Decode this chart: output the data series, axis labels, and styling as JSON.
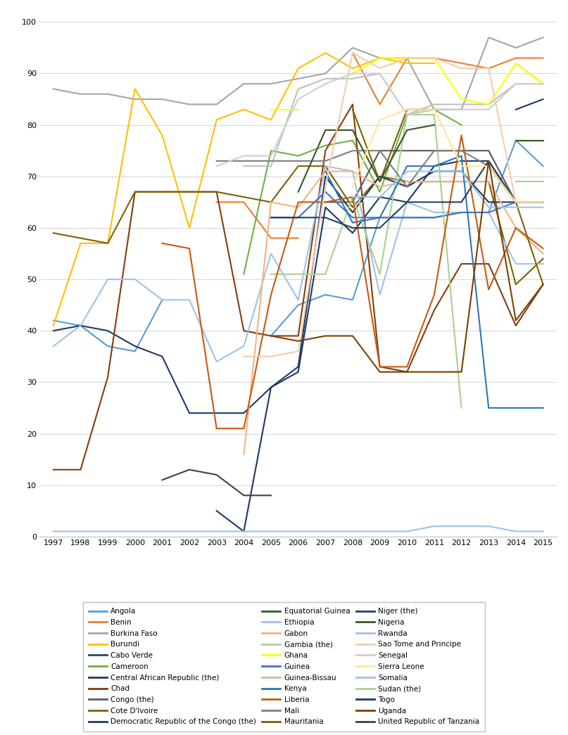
{
  "years": [
    1997,
    1998,
    1999,
    2000,
    2001,
    2002,
    2003,
    2004,
    2005,
    2006,
    2007,
    2008,
    2009,
    2010,
    2011,
    2012,
    2013,
    2014,
    2015
  ],
  "series": [
    {
      "name": "Angola",
      "color": "#5B9BD5",
      "values": [
        42,
        41,
        37,
        36,
        46,
        null,
        null,
        null,
        39,
        45,
        47,
        46,
        62,
        62,
        62,
        63,
        63,
        77,
        72
      ]
    },
    {
      "name": "Benin",
      "color": "#ED7D31",
      "values": [
        null,
        null,
        null,
        null,
        null,
        null,
        65,
        65,
        58,
        58,
        null,
        94,
        84,
        93,
        93,
        92,
        91,
        93,
        93
      ]
    },
    {
      "name": "Burkina Faso",
      "color": "#A5A5A5",
      "values": [
        87,
        86,
        86,
        85,
        85,
        84,
        84,
        88,
        88,
        89,
        90,
        95,
        93,
        93,
        83,
        83,
        97,
        95,
        97
      ]
    },
    {
      "name": "Burundi",
      "color": "#FFC000",
      "values": [
        41,
        57,
        57,
        87,
        78,
        60,
        81,
        83,
        81,
        91,
        94,
        91,
        93,
        92,
        92,
        null,
        null,
        92,
        88
      ]
    },
    {
      "name": "Cabo Verde",
      "color": "#264478",
      "values": [
        null,
        null,
        null,
        null,
        null,
        null,
        null,
        null,
        null,
        null,
        null,
        null,
        null,
        null,
        null,
        null,
        null,
        null,
        null
      ]
    },
    {
      "name": "Cameroon",
      "color": "#70AD47",
      "values": [
        null,
        null,
        null,
        null,
        null,
        null,
        null,
        51,
        75,
        74,
        76,
        77,
        67,
        82,
        83,
        80,
        null,
        77,
        77
      ]
    },
    {
      "name": "Central African Republic (the)",
      "color": "#203864",
      "values": [
        40,
        41,
        40,
        37,
        35,
        24,
        24,
        24,
        29,
        32,
        64,
        59,
        66,
        65,
        72,
        73,
        73,
        65,
        65
      ]
    },
    {
      "name": "Chad",
      "color": "#843C0C",
      "values": [
        13,
        13,
        31,
        67,
        67,
        67,
        67,
        40,
        39,
        39,
        75,
        84,
        33,
        32,
        44,
        53,
        53,
        41,
        49
      ]
    },
    {
      "name": "Congo (the)",
      "color": "#595959",
      "values": [
        null,
        null,
        null,
        null,
        null,
        null,
        null,
        null,
        null,
        null,
        65,
        65,
        75,
        75,
        75,
        75,
        75,
        65,
        65
      ]
    },
    {
      "name": "Cote D'Ivoire",
      "color": "#7F6000",
      "values": [
        59,
        58,
        57,
        67,
        67,
        67,
        67,
        66,
        65,
        72,
        72,
        64,
        70,
        69,
        69,
        69,
        69,
        49,
        54
      ]
    },
    {
      "name": "Democratic Republic of the Congo (the)",
      "color": "#1F3864",
      "values": [
        null,
        null,
        null,
        null,
        null,
        null,
        5,
        1,
        29,
        33,
        70,
        63,
        70,
        68,
        71,
        71,
        65,
        65,
        65
      ]
    },
    {
      "name": "Equatorial Guinea",
      "color": "#375623",
      "values": [
        null,
        null,
        null,
        null,
        null,
        null,
        null,
        null,
        null,
        null,
        null,
        null,
        null,
        null,
        null,
        25,
        null,
        null,
        null
      ]
    },
    {
      "name": "Ethiopia",
      "color": "#9DC3E6",
      "values": [
        37,
        41,
        50,
        50,
        46,
        46,
        34,
        37,
        55,
        46,
        72,
        71,
        47,
        65,
        63,
        63,
        63,
        53,
        53
      ]
    },
    {
      "name": "Gabon",
      "color": "#F4B183",
      "values": [
        null,
        null,
        null,
        null,
        56,
        null,
        null,
        16,
        65,
        64,
        71,
        71,
        68,
        69,
        69,
        69,
        69,
        60,
        55
      ]
    },
    {
      "name": "Gambia (the)",
      "color": "#BFBFBF",
      "values": [
        null,
        null,
        null,
        null,
        null,
        null,
        null,
        72,
        72,
        87,
        89,
        89,
        90,
        82,
        84,
        84,
        84,
        88,
        88
      ]
    },
    {
      "name": "Ghana",
      "color": "#FFFF00",
      "values": [
        null,
        null,
        null,
        null,
        null,
        null,
        null,
        null,
        83,
        83,
        null,
        90,
        93,
        93,
        93,
        85,
        84,
        92,
        88
      ]
    },
    {
      "name": "Guinea",
      "color": "#4472C4",
      "values": [
        null,
        null,
        null,
        null,
        null,
        null,
        null,
        null,
        62,
        62,
        67,
        62,
        62,
        62,
        62,
        63,
        63,
        65,
        65
      ]
    },
    {
      "name": "Guinea-Bissau",
      "color": "#A9D18E",
      "values": [
        null,
        null,
        null,
        null,
        null,
        null,
        null,
        null,
        51,
        51,
        51,
        66,
        51,
        82,
        82,
        25,
        null,
        69,
        69
      ]
    },
    {
      "name": "Kenya",
      "color": "#2E75B6",
      "values": [
        null,
        null,
        null,
        null,
        null,
        null,
        null,
        null,
        null,
        null,
        71,
        61,
        62,
        72,
        72,
        74,
        25,
        25,
        25
      ]
    },
    {
      "name": "Liberia",
      "color": "#C55A11",
      "values": [
        null,
        null,
        null,
        null,
        57,
        56,
        21,
        21,
        47,
        65,
        65,
        66,
        33,
        33,
        47,
        78,
        48,
        60,
        56
      ]
    },
    {
      "name": "Mali",
      "color": "#7F7F7F",
      "values": [
        null,
        null,
        null,
        null,
        null,
        null,
        73,
        73,
        73,
        73,
        73,
        75,
        75,
        68,
        75,
        75,
        72,
        65,
        65
      ]
    },
    {
      "name": "Mauritania",
      "color": "#806000",
      "values": [
        null,
        null,
        null,
        null,
        null,
        null,
        null,
        null,
        null,
        null,
        null,
        83,
        69,
        83,
        83,
        null,
        72,
        65,
        49
      ]
    },
    {
      "name": "Niger (the)",
      "color": "#243F60",
      "values": [
        null,
        null,
        null,
        null,
        null,
        null,
        null,
        null,
        62,
        62,
        62,
        60,
        60,
        65,
        65,
        65,
        73,
        65,
        65
      ]
    },
    {
      "name": "Nigeria",
      "color": "#375623",
      "values": [
        null,
        null,
        null,
        null,
        null,
        null,
        null,
        null,
        null,
        67,
        79,
        79,
        69,
        79,
        80,
        null,
        null,
        77,
        77
      ]
    },
    {
      "name": "Rwanda",
      "color": "#9DC3E6",
      "values": [
        null,
        null,
        null,
        null,
        null,
        null,
        null,
        null,
        null,
        null,
        null,
        66,
        66,
        71,
        71,
        71,
        64,
        64,
        64
      ]
    },
    {
      "name": "Sao Tome and Principe",
      "color": "#F4CCAC",
      "values": [
        null,
        null,
        null,
        null,
        null,
        null,
        null,
        35,
        35,
        36,
        68,
        94,
        91,
        93,
        93,
        91,
        91,
        65,
        65
      ]
    },
    {
      "name": "Senegal",
      "color": "#D0CECE",
      "values": [
        null,
        null,
        null,
        null,
        null,
        null,
        72,
        74,
        74,
        85,
        88,
        90,
        90,
        82,
        83,
        83,
        83,
        88,
        88
      ]
    },
    {
      "name": "Sierra Leone",
      "color": "#FFE699",
      "values": [
        null,
        null,
        null,
        null,
        null,
        null,
        null,
        null,
        null,
        null,
        null,
        68,
        81,
        83,
        83,
        72,
        72,
        65,
        65
      ]
    },
    {
      "name": "Somalia",
      "color": "#9DC3E6",
      "values": [
        1,
        1,
        1,
        1,
        1,
        1,
        1,
        1,
        1,
        1,
        1,
        1,
        1,
        1,
        2,
        2,
        2,
        1,
        1
      ]
    },
    {
      "name": "Sudan (the)",
      "color": "#A9D18E",
      "values": [
        null,
        null,
        null,
        null,
        null,
        null,
        null,
        null,
        null,
        null,
        null,
        null,
        null,
        null,
        null,
        null,
        null,
        null,
        null
      ]
    },
    {
      "name": "Togo",
      "color": "#1F3864",
      "values": [
        null,
        null,
        null,
        null,
        null,
        null,
        null,
        null,
        null,
        null,
        null,
        null,
        null,
        null,
        null,
        null,
        null,
        83,
        85
      ]
    },
    {
      "name": "Uganda",
      "color": "#7B3F00",
      "values": [
        null,
        null,
        null,
        null,
        null,
        null,
        null,
        null,
        39,
        38,
        39,
        39,
        32,
        32,
        32,
        32,
        73,
        42,
        49
      ]
    },
    {
      "name": "United Republic of Tanzania",
      "color": "#404040",
      "values": [
        null,
        null,
        null,
        null,
        11,
        13,
        12,
        8,
        8,
        null,
        null,
        null,
        null,
        null,
        null,
        null,
        null,
        null,
        null
      ]
    }
  ],
  "ylim": [
    0,
    100
  ],
  "yticks": [
    0,
    10,
    20,
    30,
    40,
    50,
    60,
    70,
    80,
    90,
    100
  ],
  "grid_color": "#D9D9D9",
  "figsize": [
    8.07,
    10.45
  ],
  "dpi": 100
}
